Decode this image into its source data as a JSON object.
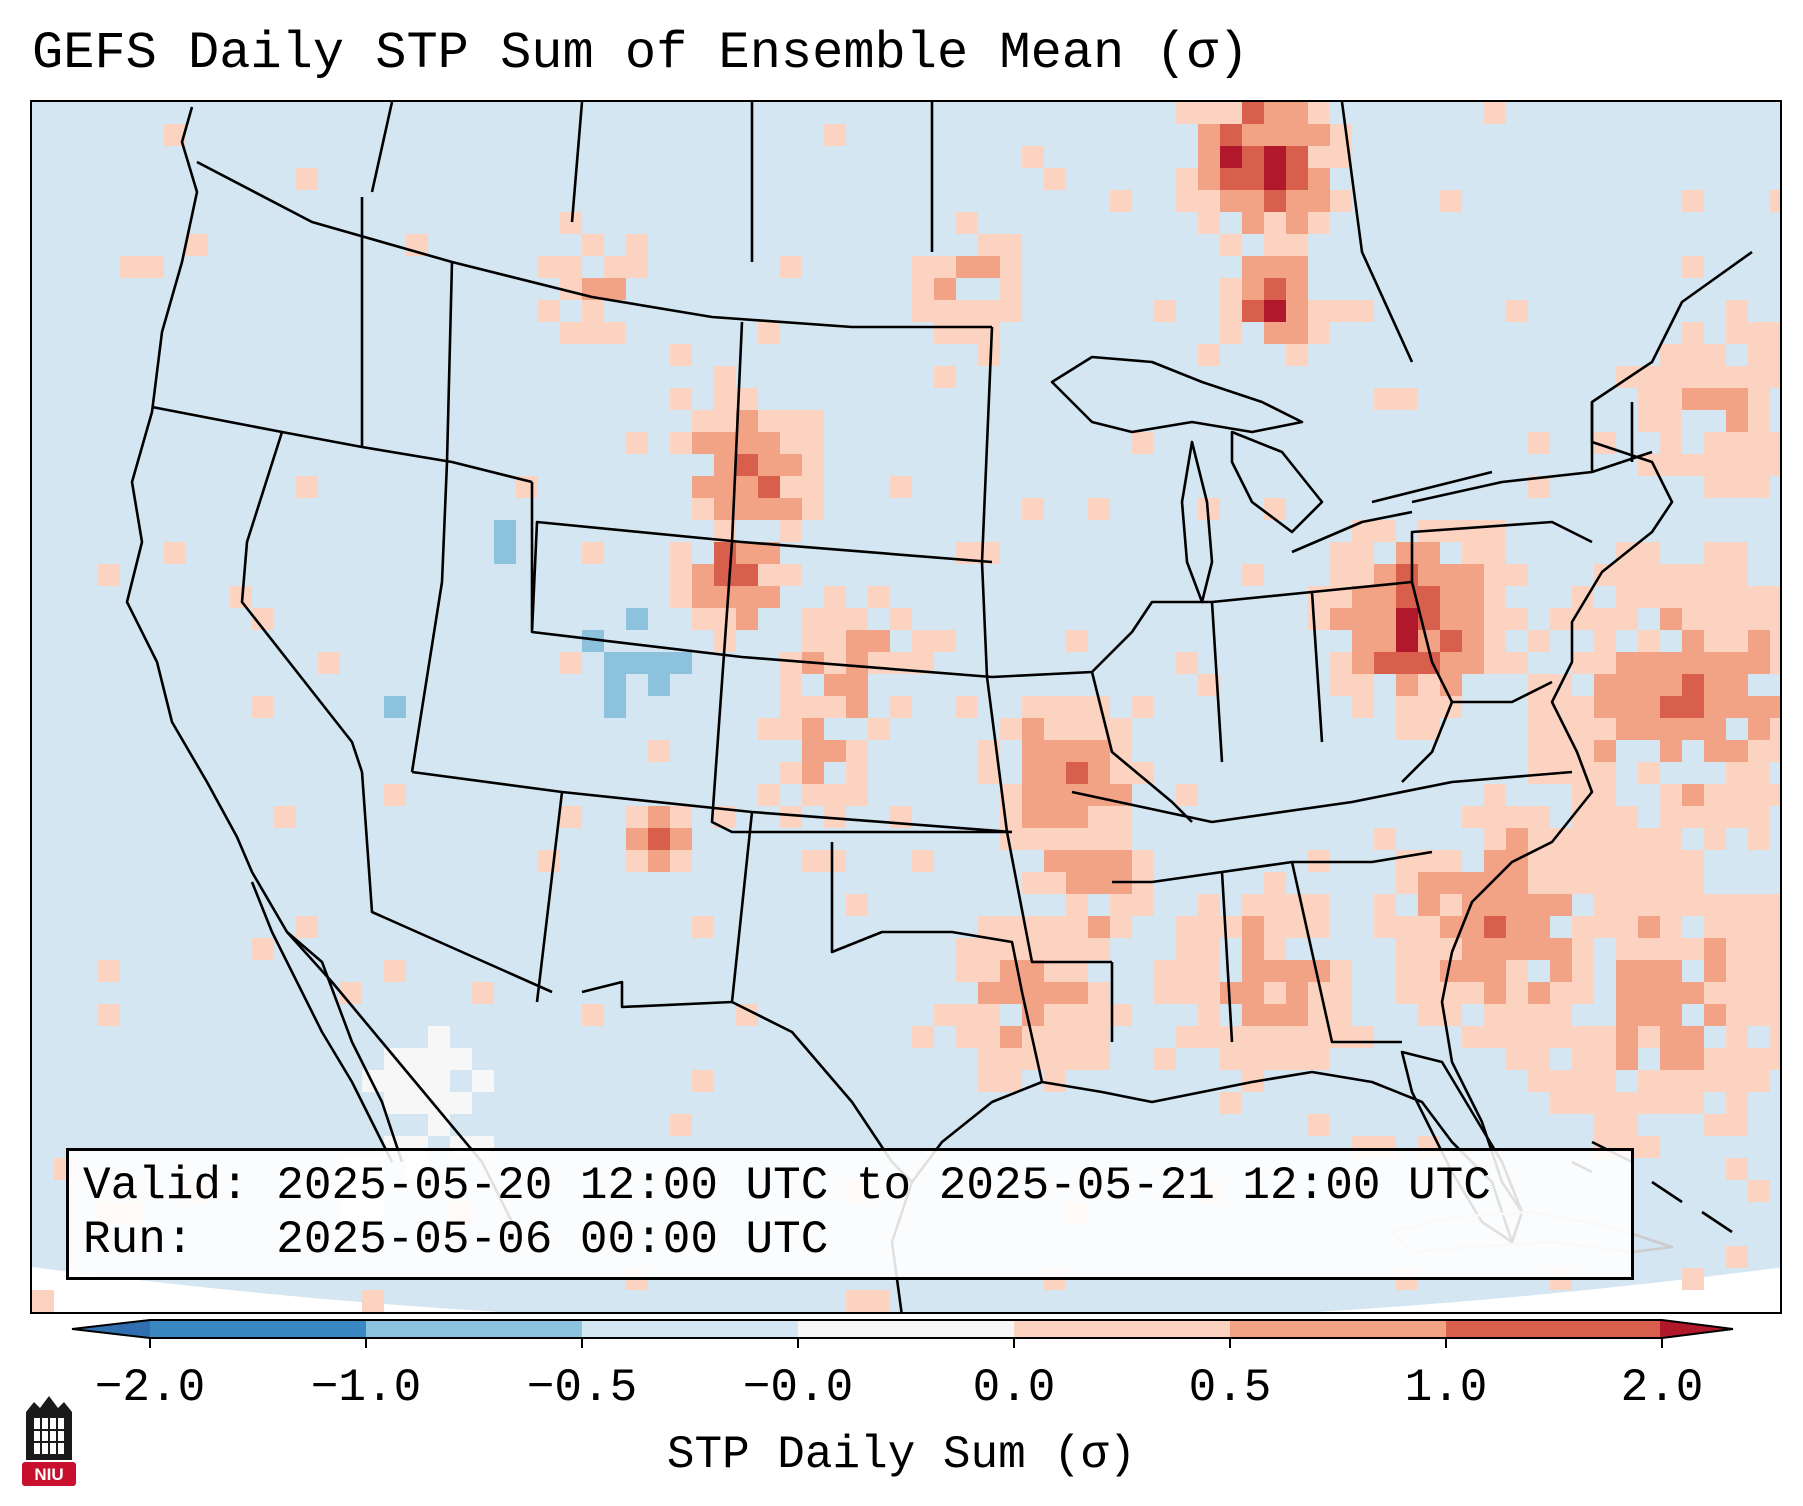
{
  "title": "GEFS Daily STP Sum of Ensemble Mean (σ)",
  "info": {
    "valid_label": "Valid:",
    "valid_value": "2025-05-20 12:00 UTC to 2025-05-21 12:00 UTC",
    "run_label": "Run:",
    "run_value": "2025-05-06 00:00 UTC"
  },
  "colorbar": {
    "label": "STP Daily Sum (σ)",
    "ticks": [
      "−2.0",
      "−1.0",
      "−0.5",
      "−0.0",
      "0.0",
      "0.5",
      "1.0",
      "2.0"
    ],
    "colors": [
      "#3a87c2",
      "#8cc2de",
      "#d4e6f1",
      "#f7f7f7",
      "#fbd3c0",
      "#f2a385",
      "#d85f4c"
    ],
    "extend_min_color": "#2f6fb0",
    "extend_max_color": "#b2182b"
  },
  "map": {
    "background_color": "#d4e6f1",
    "region": "Contiguous United States with southern Canada, northern Mexico and western Atlantic",
    "regions": [
      {
        "name": "Northern Ontario / Hudson Bay lowlands",
        "sigma_range": [
          1.0,
          2.0
        ]
      },
      {
        "name": "Lake Superior north shore",
        "sigma_range": [
          1.0,
          2.0
        ]
      },
      {
        "name": "West Virginia / Virginia",
        "sigma_range": [
          1.0,
          2.0
        ]
      },
      {
        "name": "Northern Colorado / Wyoming",
        "sigma_range": [
          1.0,
          2.0
        ]
      },
      {
        "name": "Southeastern New Mexico",
        "sigma_range": [
          1.0,
          2.0
        ]
      },
      {
        "name": "Arkansas / Oklahoma",
        "sigma_range": [
          0.5,
          1.0
        ]
      },
      {
        "name": "Carolinas coast / Atlantic",
        "sigma_range": [
          0.5,
          1.0
        ]
      },
      {
        "name": "Western Atlantic offshore",
        "sigma_range": [
          0.0,
          1.0
        ]
      },
      {
        "name": "Colorado / Utah high terrain",
        "sigma_range": [
          -1.0,
          -0.5
        ]
      },
      {
        "name": "Baja California / NW Mexico",
        "sigma_range": [
          -0.5,
          0.0
        ]
      }
    ]
  },
  "logo": {
    "text": "NIU",
    "color": "#c8102e"
  }
}
